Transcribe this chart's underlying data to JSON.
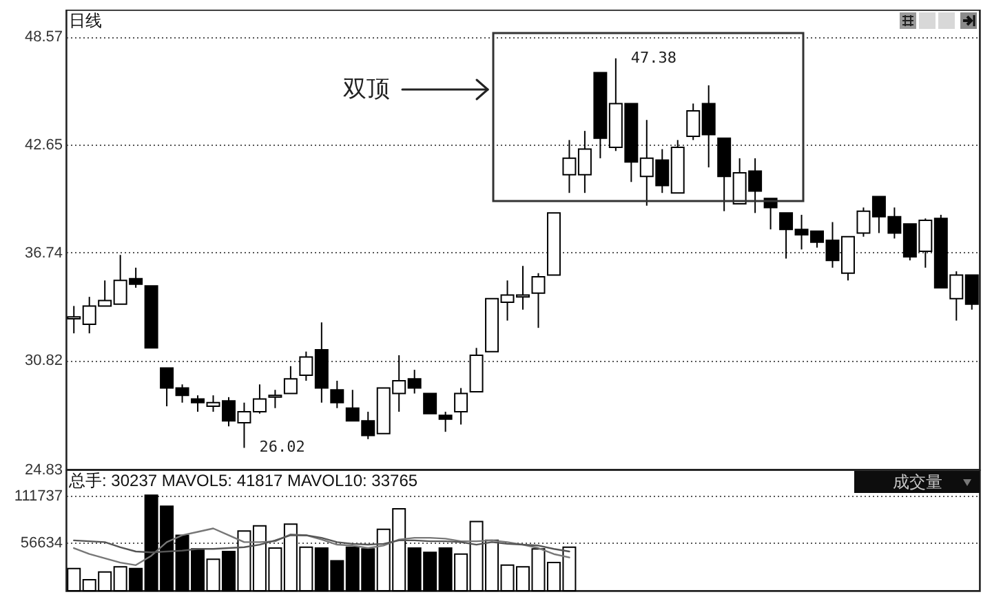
{
  "chart_data": [
    {
      "type": "candlestick",
      "title": "日线",
      "categories": [
        null,
        null,
        null,
        null,
        null,
        null,
        null,
        null,
        null,
        null,
        null,
        null,
        null,
        null,
        null,
        null,
        null,
        null,
        null,
        null,
        null,
        null,
        null,
        null,
        null,
        null,
        null,
        null,
        null,
        null,
        null,
        null,
        null,
        null,
        null,
        null,
        null,
        null,
        null,
        null,
        null,
        null,
        null,
        null,
        null,
        null,
        null,
        null,
        null,
        null,
        null,
        null,
        null,
        null,
        null,
        null,
        null,
        null,
        null
      ],
      "ohlc": [
        [
          33.1,
          33.8,
          32.3,
          33.2
        ],
        [
          32.8,
          34.3,
          32.3,
          33.8
        ],
        [
          33.8,
          35.2,
          33.8,
          34.1
        ],
        [
          33.9,
          36.6,
          33.9,
          35.2
        ],
        [
          35.3,
          35.9,
          34.8,
          35.0
        ],
        [
          34.9,
          34.9,
          31.5,
          31.5
        ],
        [
          30.4,
          30.4,
          28.3,
          29.3
        ],
        [
          29.3,
          29.5,
          28.5,
          28.9
        ],
        [
          28.7,
          28.9,
          28.0,
          28.5
        ],
        [
          28.3,
          28.9,
          28.0,
          28.5
        ],
        [
          28.6,
          28.8,
          27.2,
          27.5
        ],
        [
          27.4,
          28.5,
          26.02,
          28.0
        ],
        [
          28.0,
          29.5,
          27.9,
          28.7
        ],
        [
          28.8,
          29.2,
          28.2,
          28.9
        ],
        [
          29.0,
          30.5,
          29.0,
          29.8
        ],
        [
          30.0,
          31.3,
          29.7,
          31.0
        ],
        [
          31.4,
          32.9,
          28.5,
          29.3
        ],
        [
          29.2,
          29.7,
          28.2,
          28.5
        ],
        [
          28.2,
          29.2,
          27.5,
          27.5
        ],
        [
          27.5,
          28.0,
          26.5,
          26.7
        ],
        [
          26.8,
          29.3,
          26.8,
          29.3
        ],
        [
          29.0,
          31.1,
          28.0,
          29.7
        ],
        [
          29.8,
          30.3,
          29.0,
          29.3
        ],
        [
          29.0,
          29.0,
          27.9,
          27.9
        ],
        [
          27.8,
          28.0,
          26.9,
          27.6
        ],
        [
          28.0,
          29.3,
          27.3,
          29.0
        ],
        [
          29.1,
          31.5,
          29.1,
          31.1
        ],
        [
          31.3,
          34.2,
          31.3,
          34.2
        ],
        [
          34.0,
          35.2,
          33.0,
          34.4
        ],
        [
          34.3,
          36.0,
          33.6,
          34.4
        ],
        [
          34.5,
          35.6,
          32.6,
          35.4
        ],
        [
          35.5,
          38.9,
          35.5,
          38.9
        ],
        [
          41.0,
          42.9,
          40.0,
          41.9
        ],
        [
          41.0,
          43.4,
          40.0,
          42.4
        ],
        [
          46.6,
          46.6,
          41.9,
          43.0
        ],
        [
          42.5,
          47.38,
          42.3,
          44.9
        ],
        [
          44.9,
          44.9,
          40.6,
          41.7
        ],
        [
          40.9,
          44.0,
          39.3,
          41.9
        ],
        [
          41.8,
          42.4,
          40.0,
          40.4
        ],
        [
          40.0,
          42.9,
          40.0,
          42.5
        ],
        [
          43.1,
          44.9,
          42.9,
          44.5
        ],
        [
          44.9,
          45.9,
          41.4,
          43.2
        ],
        [
          43.0,
          43.0,
          39.0,
          40.9
        ],
        [
          39.4,
          41.9,
          39.4,
          41.1
        ],
        [
          41.2,
          41.9,
          38.9,
          40.1
        ],
        [
          39.7,
          39.7,
          38.0,
          39.2
        ],
        [
          38.9,
          38.9,
          36.4,
          38.0
        ],
        [
          38.0,
          38.8,
          36.9,
          37.7
        ],
        [
          37.9,
          37.9,
          37.0,
          37.3
        ],
        [
          37.4,
          38.4,
          35.9,
          36.3
        ],
        [
          35.6,
          37.6,
          35.2,
          37.6
        ],
        [
          37.8,
          39.2,
          37.6,
          39.0
        ],
        [
          39.8,
          39.8,
          37.8,
          38.7
        ],
        [
          38.7,
          39.2,
          37.5,
          37.8
        ],
        [
          38.3,
          38.3,
          36.3,
          36.5
        ],
        [
          36.8,
          38.6,
          35.9,
          38.5
        ],
        [
          38.6,
          38.8,
          34.8,
          34.8
        ],
        [
          34.2,
          35.7,
          33.0,
          35.5
        ],
        [
          35.5,
          35.5,
          33.6,
          33.9
        ]
      ],
      "color": "#000000",
      "colors": [
        "#ffffff",
        "#ffffff",
        "#ffffff",
        "#ffffff",
        "#000000",
        "#000000",
        "#000000",
        "#000000",
        "#000000",
        "#ffffff",
        "#000000",
        "#ffffff",
        "#ffffff",
        "#ffffff",
        "#ffffff",
        "#ffffff",
        "#000000",
        "#000000",
        "#000000",
        "#000000",
        "#ffffff",
        "#ffffff",
        "#000000",
        "#000000",
        "#000000",
        "#ffffff",
        "#ffffff",
        "#ffffff",
        "#ffffff",
        "#ffffff",
        "#ffffff",
        "#ffffff",
        "#ffffff",
        "#ffffff",
        "#000000",
        "#ffffff",
        "#000000",
        "#ffffff",
        "#000000",
        "#ffffff",
        "#ffffff",
        "#000000",
        "#000000",
        "#ffffff",
        "#000000",
        "#000000",
        "#000000",
        "#000000",
        "#000000",
        "#000000",
        "#ffffff",
        "#ffffff",
        "#000000",
        "#000000",
        "#000000",
        "#ffffff",
        "#000000",
        "#ffffff",
        "#000000"
      ],
      "ylim": [
        24.83,
        50.05
      ],
      "yticks": [
        24.83,
        30.82,
        36.74,
        42.65,
        48.57
      ],
      "grid": "y",
      "tick_labels": "y",
      "annotations": [
        "双顶",
        "47.38",
        "26.02"
      ]
    },
    {
      "type": "bar",
      "title": "总手: 30237 MAVOL5: 41817 MAVOL10: 33765",
      "categories": [
        null,
        null,
        null,
        null,
        null,
        null,
        null,
        null,
        null,
        null,
        null,
        null,
        null,
        null,
        null,
        null,
        null,
        null,
        null,
        null,
        null,
        null,
        null,
        null,
        null,
        null,
        null,
        null,
        null,
        null,
        null,
        null,
        null,
        null,
        null,
        null,
        null,
        null,
        null,
        null,
        null,
        null,
        null,
        null,
        null,
        null,
        null,
        null,
        null,
        null,
        null,
        null,
        null,
        null,
        null,
        null,
        null,
        null,
        null
      ],
      "series": [
        {
          "type": "bar",
          "color": "#000000",
          "values": [
            26000,
            13000,
            22000,
            28000,
            26000,
            112000,
            99000,
            65000,
            49000,
            37000,
            46000,
            70000,
            76000,
            50000,
            78000,
            51000,
            50000,
            35000,
            51000,
            49000,
            72000,
            96000,
            50000,
            45000,
            50000,
            43000,
            81000,
            59000,
            30000,
            28000,
            49000,
            33000,
            51000,
            null,
            null,
            null,
            null,
            null,
            null,
            null,
            null,
            null,
            null,
            null,
            null,
            null,
            null,
            null,
            null,
            null,
            null,
            null,
            null,
            null,
            null,
            null,
            null,
            null,
            null
          ],
          "colors": [
            "#ffffff",
            "#ffffff",
            "#ffffff",
            "#ffffff",
            "#000000",
            "#000000",
            "#000000",
            "#000000",
            "#000000",
            "#ffffff",
            "#000000",
            "#ffffff",
            "#ffffff",
            "#ffffff",
            "#ffffff",
            "#ffffff",
            "#000000",
            "#000000",
            "#000000",
            "#000000",
            "#ffffff",
            "#ffffff",
            "#000000",
            "#000000",
            "#000000",
            "#ffffff",
            "#ffffff",
            "#ffffff",
            "#ffffff",
            "#ffffff",
            "#ffffff",
            "#ffffff",
            "#ffffff",
            "#ffffff",
            "#000000",
            "#ffffff",
            "#000000",
            "#ffffff",
            "#000000",
            "#ffffff",
            "#ffffff",
            "#000000",
            "#000000",
            "#ffffff",
            "#000000",
            "#000000",
            "#000000",
            "#000000",
            "#000000",
            "#000000",
            "#ffffff",
            "#ffffff",
            "#000000",
            "#000000",
            "#000000",
            "#ffffff",
            "#000000",
            "#ffffff",
            "#000000"
          ]
        },
        {
          "type": "line",
          "color": "#777777",
          "values": [
            50000,
            43000,
            38000,
            33000,
            30000,
            41000,
            57000,
            65000,
            69000,
            73000,
            65000,
            57000,
            57000,
            58000,
            66000,
            65000,
            60000,
            54000,
            53000,
            50000,
            53000,
            60000,
            62000,
            62000,
            61000,
            58000,
            58000,
            59000,
            57000,
            54000,
            50000,
            43000,
            39000,
            null,
            null,
            null,
            null,
            null,
            null,
            null,
            null,
            null,
            null,
            null,
            null,
            null,
            null,
            null,
            null,
            null,
            null,
            null,
            null,
            null,
            null,
            null,
            null,
            null,
            null
          ]
        },
        {
          "type": "line",
          "color": "#555555",
          "values": [
            59000,
            58000,
            57000,
            51000,
            46000,
            45000,
            46000,
            47000,
            49000,
            49000,
            50000,
            51000,
            54000,
            59000,
            65000,
            65000,
            62000,
            57000,
            55000,
            54000,
            55000,
            59000,
            59000,
            58000,
            58000,
            57000,
            54000,
            57000,
            55000,
            54000,
            53000,
            49000,
            46000,
            null,
            null,
            null,
            null,
            null,
            null,
            null,
            null,
            null,
            null,
            null,
            null,
            null,
            null,
            null,
            null,
            null,
            null,
            null,
            null,
            null,
            null,
            null,
            null,
            null,
            null
          ]
        }
      ],
      "ylim": [
        0,
        142000
      ],
      "yticks": [
        56634,
        111737
      ],
      "grid": "y",
      "tick_labels": "y",
      "annotations": [
        "成交量"
      ]
    }
  ]
}
